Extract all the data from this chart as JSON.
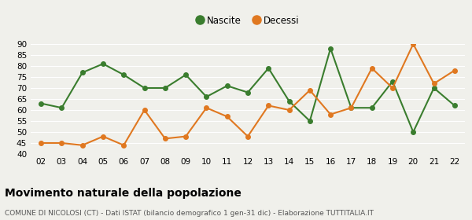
{
  "years": [
    "02",
    "03",
    "04",
    "05",
    "06",
    "07",
    "08",
    "09",
    "10",
    "11",
    "12",
    "13",
    "14",
    "15",
    "16",
    "17",
    "18",
    "19",
    "20",
    "21",
    "22"
  ],
  "nascite": [
    63,
    61,
    77,
    81,
    76,
    70,
    70,
    76,
    66,
    71,
    68,
    79,
    64,
    55,
    88,
    61,
    61,
    73,
    50,
    70,
    62
  ],
  "decessi": [
    45,
    45,
    44,
    48,
    44,
    60,
    47,
    48,
    61,
    57,
    48,
    62,
    60,
    69,
    58,
    61,
    79,
    70,
    90,
    72,
    78
  ],
  "nascite_color": "#3a7d2e",
  "decessi_color": "#e07820",
  "bg_color": "#f0f0eb",
  "grid_color": "#ffffff",
  "ylim": [
    40,
    90
  ],
  "yticks": [
    40,
    45,
    50,
    55,
    60,
    65,
    70,
    75,
    80,
    85,
    90
  ],
  "title": "Movimento naturale della popolazione",
  "subtitle": "COMUNE DI NICOLOSI (CT) - Dati ISTAT (bilancio demografico 1 gen-31 dic) - Elaborazione TUTTITALIA.IT",
  "legend_nascite": "Nascite",
  "legend_decessi": "Decessi",
  "marker_size": 4,
  "line_width": 1.5,
  "tick_fontsize": 7.5,
  "title_fontsize": 10,
  "subtitle_fontsize": 6.5,
  "legend_fontsize": 8.5
}
